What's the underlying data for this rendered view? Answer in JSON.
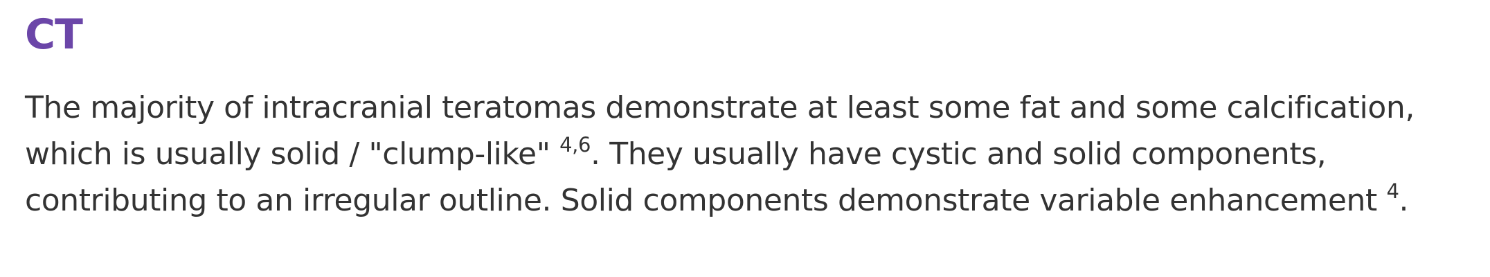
{
  "section": {
    "heading": "CT",
    "paragraph": {
      "text_1": "The majority of intracranial teratomas demonstrate at least some fat and some calcification, which is usually solid / \"clump-like\" ",
      "ref_1": "4,6",
      "text_2": ". They usually have cystic and solid components, contributing to an irregular outline. Solid components demonstrate variable enhancement ",
      "ref_2": "4",
      "text_3": "."
    }
  },
  "colors": {
    "heading": "#6b46a8",
    "body_text": "#333333",
    "background": "#ffffff"
  }
}
